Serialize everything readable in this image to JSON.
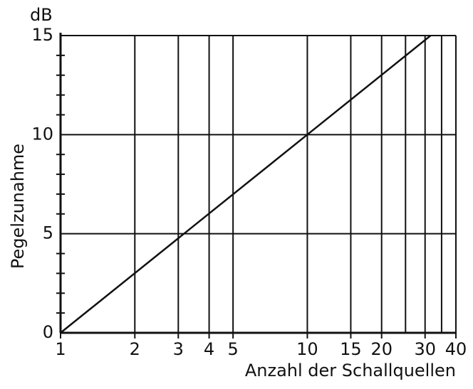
{
  "chart_data": {
    "type": "line",
    "x_scale": "log",
    "y_unit": "dB",
    "ylabel": "Pegelzunahme",
    "xlabel": "Anzahl der Schallquellen",
    "x": [
      1,
      10,
      31.6
    ],
    "series": [
      {
        "name": "Pegelzunahme",
        "color": "#111111",
        "values": [
          0,
          10,
          15
        ]
      }
    ],
    "xlim": [
      1,
      40
    ],
    "xticks": [
      1,
      2,
      3,
      4,
      5,
      10,
      15,
      20,
      30,
      40
    ],
    "xgrid_extra": [
      25,
      35
    ],
    "ylim": [
      0,
      15
    ],
    "yticks": [
      0,
      5,
      10,
      15
    ],
    "yminorticks": [
      1,
      2,
      3,
      4,
      6,
      7,
      8,
      9,
      11,
      12,
      13,
      14
    ],
    "grid": true
  }
}
